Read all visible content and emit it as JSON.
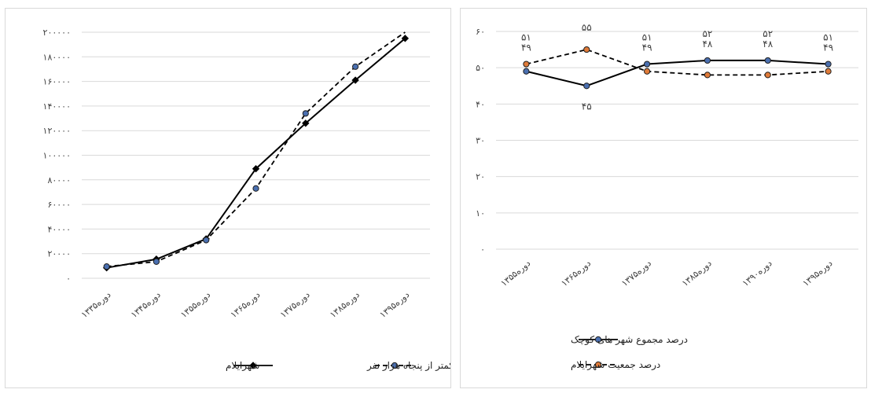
{
  "chart_data": [
    {
      "type": "line",
      "categories": [
        "دوره۱۳۳۵",
        "دوره۱۳۴۵",
        "دوره۱۳۵۵",
        "دوره۱۳۶۵",
        "دوره۱۳۷۵",
        "دوره۱۳۸۵",
        "دوره۱۳۹۵"
      ],
      "ylim": [
        0,
        200000
      ],
      "yticks": [
        0,
        20000,
        40000,
        60000,
        80000,
        100000,
        120000,
        140000,
        160000,
        180000,
        200000
      ],
      "ytick_labels": [
        "۰",
        "۲۰۰۰۰",
        "۴۰۰۰۰",
        "۶۰۰۰۰",
        "۸۰۰۰۰",
        "۱۰۰۰۰۰",
        "۱۲۰۰۰۰",
        "۱۴۰۰۰۰",
        "۱۶۰۰۰۰",
        "۱۸۰۰۰۰",
        "۲۰۰۰۰۰"
      ],
      "grid": true,
      "legend_position": "bottom",
      "series": [
        {
          "name": "شهرایلام",
          "values": [
            8500,
            15500,
            32000,
            89000,
            126000,
            161000,
            195000
          ],
          "color": "#000000",
          "style": "solid",
          "marker": "diamond"
        },
        {
          "name": "مجموع شهر های کمتر از پنجاه هزار نفر",
          "values": [
            9500,
            13500,
            31000,
            73000,
            134000,
            172000,
            200000
          ],
          "color": "#000000",
          "style": "dashed",
          "marker": "circle",
          "marker_color": "#4a6fb0",
          "markers_on": [
            0,
            1,
            2,
            3,
            4,
            5
          ]
        }
      ]
    },
    {
      "type": "line",
      "categories": [
        "دوره۱۳۵۵",
        "دوره۱۳۶۵",
        "دوره۱۳۷۵",
        "دوره۱۳۸۵",
        "دوره۱۳۹۰",
        "دوره۱۳۹۵"
      ],
      "ylim": [
        0,
        60
      ],
      "yticks": [
        0,
        10,
        20,
        30,
        40,
        50,
        60
      ],
      "ytick_labels": [
        "۰",
        "۱۰",
        "۲۰",
        "۳۰",
        "۴۰",
        "۵۰",
        "۶۰"
      ],
      "grid": true,
      "legend_position": "bottom",
      "series": [
        {
          "name": "درصد مجموع شهر های کوچک",
          "values": [
            49,
            45,
            51,
            52,
            52,
            51
          ],
          "color": "#000000",
          "style": "solid",
          "marker": "circle",
          "marker_color": "#4a6fb0",
          "labels": [
            "۴۹",
            "۴۵",
            "۵۱",
            "۵۲",
            "۵۲",
            "۵۱"
          ]
        },
        {
          "name": "درصد جمعیت شهرایلام",
          "values": [
            51,
            55,
            49,
            48,
            48,
            49
          ],
          "color": "#000000",
          "style": "dashed",
          "marker": "circle",
          "marker_color": "#e07b39",
          "labels": [
            "۵۱",
            "۵۵",
            "۴۹",
            "۴۸",
            "۴۸",
            "۴۹"
          ]
        }
      ]
    }
  ]
}
